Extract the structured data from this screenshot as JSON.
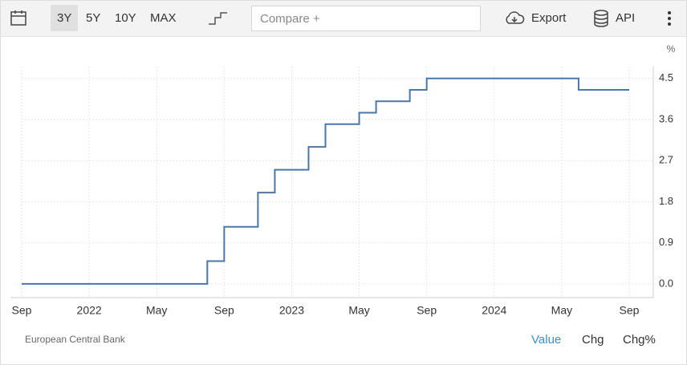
{
  "toolbar": {
    "ranges": [
      "3Y",
      "5Y",
      "10Y",
      "MAX"
    ],
    "compare": "Compare +",
    "export": "Export",
    "api": "API"
  },
  "chart_data": {
    "type": "step",
    "ylabel": "%",
    "source": "European Central Bank",
    "x": [
      "2021-09",
      "2022-08",
      "2022-09",
      "2022-11",
      "2022-12",
      "2023-02",
      "2023-03",
      "2023-05",
      "2023-06",
      "2023-08",
      "2023-09",
      "2024-06",
      "2024-09"
    ],
    "values": [
      0,
      0.5,
      1.25,
      2.0,
      2.5,
      3.0,
      3.5,
      3.75,
      4.0,
      4.25,
      4.5,
      4.25,
      4.25
    ],
    "color": "#4a76a8",
    "xlim": [
      "2021-09",
      "2024-09"
    ],
    "xticks": [
      {
        "value": "2021-09",
        "label": "Sep"
      },
      {
        "value": "2022-01",
        "label": "2022"
      },
      {
        "value": "2022-05",
        "label": "May"
      },
      {
        "value": "2022-09",
        "label": "Sep"
      },
      {
        "value": "2023-01",
        "label": "2023"
      },
      {
        "value": "2023-05",
        "label": "May"
      },
      {
        "value": "2023-09",
        "label": "Sep"
      },
      {
        "value": "2024-01",
        "label": "2024"
      },
      {
        "value": "2024-05",
        "label": "May"
      },
      {
        "value": "2024-09",
        "label": "Sep"
      }
    ],
    "ylim": [
      -0.3,
      4.76
    ],
    "yticks": [
      {
        "value": 0,
        "label": "0.0"
      },
      0.9,
      1.8,
      2.7,
      3.6,
      4.5
    ],
    "grid": true
  },
  "footer_tabs": [
    "Value",
    "Chg",
    "Chg%"
  ]
}
